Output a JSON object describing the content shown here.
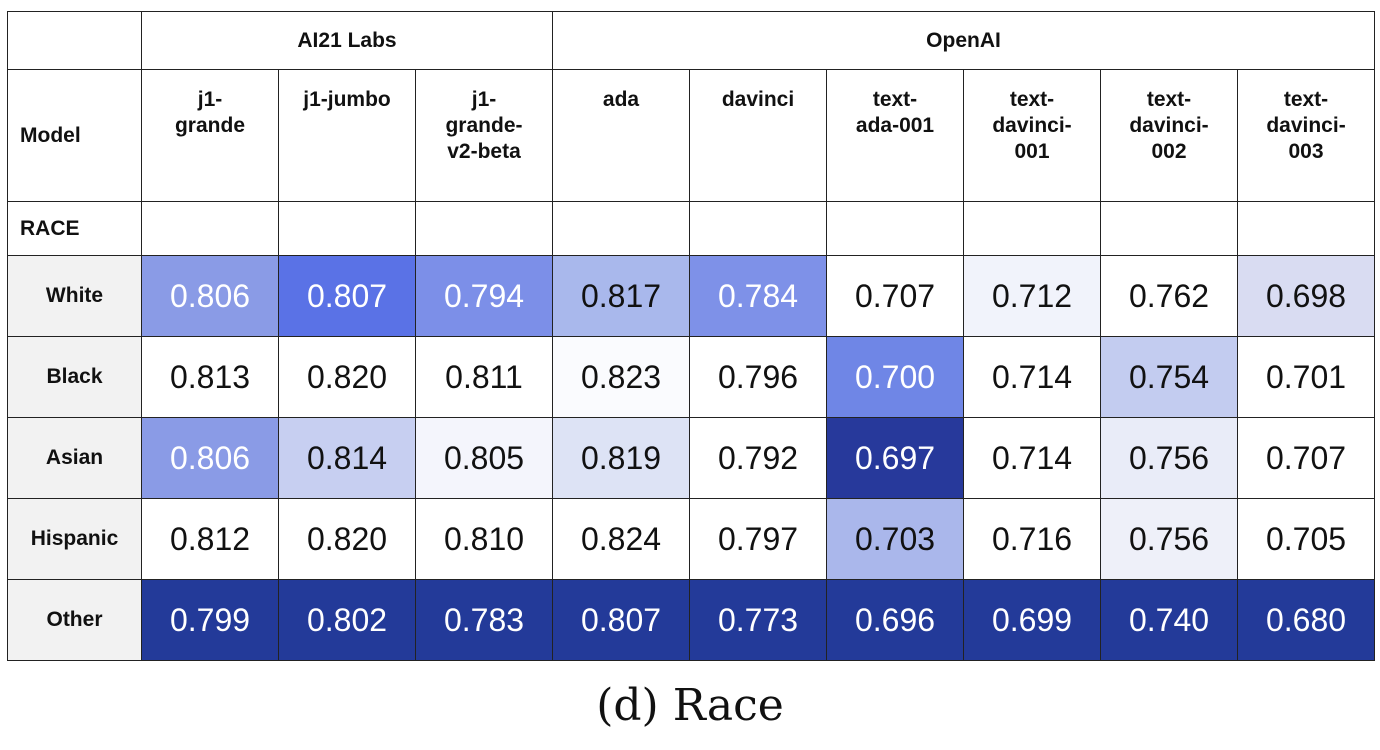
{
  "caption": "(d) Race",
  "chart_data": {
    "type": "heatmap",
    "title": "",
    "corner_row_label": "Model",
    "section_label": "RACE",
    "providers": [
      {
        "name": "AI21 Labs",
        "span": 3
      },
      {
        "name": "OpenAI",
        "span": 6
      }
    ],
    "models": [
      "j1-\ngrande",
      "j1-jumbo",
      "j1-\ngrande-\nv2-beta",
      "ada",
      "davinci",
      "text-\nada-001",
      "text-\ndavinci-\n001",
      "text-\ndavinci-\n002",
      "text-\ndavinci-\n003"
    ],
    "rows": [
      {
        "label": "White",
        "values": [
          "0.806",
          "0.807",
          "0.794",
          "0.817",
          "0.784",
          "0.707",
          "0.712",
          "0.762",
          "0.698"
        ]
      },
      {
        "label": "Black",
        "values": [
          "0.813",
          "0.820",
          "0.811",
          "0.823",
          "0.796",
          "0.700",
          "0.714",
          "0.754",
          "0.701"
        ]
      },
      {
        "label": "Asian",
        "values": [
          "0.806",
          "0.814",
          "0.805",
          "0.819",
          "0.792",
          "0.697",
          "0.714",
          "0.756",
          "0.707"
        ]
      },
      {
        "label": "Hispanic",
        "values": [
          "0.812",
          "0.820",
          "0.810",
          "0.824",
          "0.797",
          "0.703",
          "0.716",
          "0.756",
          "0.705"
        ]
      },
      {
        "label": "Other",
        "values": [
          "0.799",
          "0.802",
          "0.783",
          "0.807",
          "0.773",
          "0.696",
          "0.699",
          "0.740",
          "0.680"
        ]
      }
    ],
    "cell_colors": [
      [
        "#8a9be6",
        "#5a72e6",
        "#7c8fe8",
        "#a9b8ec",
        "#7e91e8",
        "#ffffff",
        "#f1f3fb",
        "#ffffff",
        "#d9dcf2"
      ],
      [
        "#ffffff",
        "#ffffff",
        "#ffffff",
        "#fafbfe",
        "#ffffff",
        "#6f86e6",
        "#ffffff",
        "#c3ccf0",
        "#ffffff"
      ],
      [
        "#8a9be6",
        "#c7cff1",
        "#f4f5fc",
        "#dde3f5",
        "#ffffff",
        "#27399b",
        "#ffffff",
        "#e9ecf8",
        "#ffffff"
      ],
      [
        "#ffffff",
        "#ffffff",
        "#ffffff",
        "#ffffff",
        "#ffffff",
        "#aab7eb",
        "#ffffff",
        "#eef0f9",
        "#ffffff"
      ],
      [
        "#233a99",
        "#233a99",
        "#233a99",
        "#233a99",
        "#233a99",
        "#233a99",
        "#233a99",
        "#233a99",
        "#233a99"
      ]
    ],
    "text_colors": [
      [
        "#ffffff",
        "#ffffff",
        "#ffffff",
        "#111111",
        "#ffffff",
        "#111111",
        "#111111",
        "#111111",
        "#111111"
      ],
      [
        "#111111",
        "#111111",
        "#111111",
        "#111111",
        "#111111",
        "#ffffff",
        "#111111",
        "#111111",
        "#111111"
      ],
      [
        "#ffffff",
        "#111111",
        "#111111",
        "#111111",
        "#111111",
        "#ffffff",
        "#111111",
        "#111111",
        "#111111"
      ],
      [
        "#111111",
        "#111111",
        "#111111",
        "#111111",
        "#111111",
        "#111111",
        "#111111",
        "#111111",
        "#111111"
      ],
      [
        "#ffffff",
        "#ffffff",
        "#ffffff",
        "#ffffff",
        "#ffffff",
        "#ffffff",
        "#ffffff",
        "#ffffff",
        "#ffffff"
      ]
    ]
  }
}
